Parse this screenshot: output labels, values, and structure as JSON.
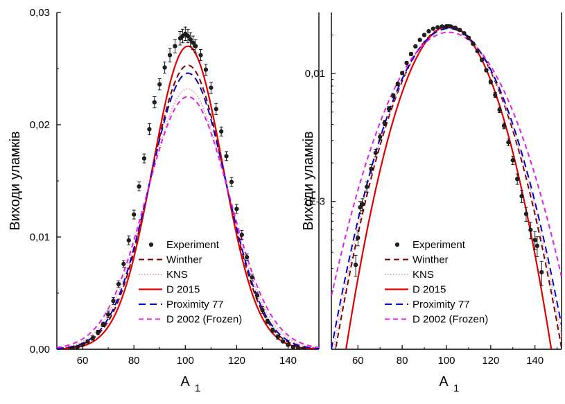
{
  "chart_data": [
    {
      "type": "line",
      "title": "",
      "xlabel_main": "A",
      "xlabel_sub": "1",
      "ylabel": "Виходи уламків",
      "xlim": [
        50,
        152
      ],
      "ylim": [
        0,
        0.03
      ],
      "yscale": "linear",
      "xticks": [
        60,
        80,
        100,
        120,
        140
      ],
      "xtick_labels": [
        "60",
        "80",
        "100",
        "120",
        "140"
      ],
      "yticks": [
        0,
        0.01,
        0.02,
        0.03
      ],
      "ytick_labels": [
        "0,00",
        "0,01",
        "0,02",
        "0,03"
      ],
      "grid": false,
      "legend_position": "lower-center",
      "experiment": {
        "name": "Experiment",
        "color": "#000000",
        "x": [
          56,
          58,
          60,
          62,
          64,
          66,
          68,
          70,
          72,
          74,
          76,
          78,
          80,
          82,
          84,
          86,
          88,
          90,
          92,
          94,
          96,
          98,
          99,
          100,
          101,
          102,
          103,
          104,
          106,
          108,
          110,
          112,
          114,
          116,
          118,
          120,
          122,
          124,
          126,
          128,
          130,
          132,
          134,
          136,
          138,
          140,
          142,
          144,
          146
        ],
        "y": [
          0.0001,
          0.0002,
          0.0004,
          0.0007,
          0.001,
          0.0015,
          0.0022,
          0.0031,
          0.0043,
          0.0058,
          0.0076,
          0.0097,
          0.012,
          0.0145,
          0.017,
          0.0196,
          0.022,
          0.0236,
          0.0251,
          0.0262,
          0.027,
          0.0277,
          0.0279,
          0.0281,
          0.0279,
          0.0276,
          0.0273,
          0.027,
          0.0262,
          0.0249,
          0.0233,
          0.0214,
          0.0194,
          0.0172,
          0.0149,
          0.0125,
          0.0102,
          0.0082,
          0.0064,
          0.0048,
          0.0035,
          0.0025,
          0.0017,
          0.0011,
          0.0007,
          0.0004,
          0.0002,
          0.0001,
          5e-05
        ],
        "err": [
          0.0001,
          0.0001,
          0.0001,
          0.0001,
          0.0002,
          0.0002,
          0.0002,
          0.0003,
          0.0003,
          0.0003,
          0.0003,
          0.0004,
          0.0004,
          0.0004,
          0.0004,
          0.0005,
          0.0005,
          0.0005,
          0.0005,
          0.0006,
          0.0006,
          0.0006,
          0.0006,
          0.0006,
          0.0006,
          0.0006,
          0.0006,
          0.0006,
          0.0005,
          0.0005,
          0.0005,
          0.0005,
          0.0004,
          0.0004,
          0.0004,
          0.0004,
          0.0004,
          0.0003,
          0.0003,
          0.0003,
          0.0003,
          0.0002,
          0.0002,
          0.0002,
          0.0001,
          0.0001,
          0.0001,
          0.0001,
          0.0001
        ]
      },
      "curves": [
        {
          "name": "Winther",
          "color": "#7a0000",
          "dash": "8,5",
          "mu": 101,
          "sigma": 14.4,
          "peak": 0.0253
        },
        {
          "name": "KNS",
          "color": "#f2a0a0",
          "dash": "1.5,2.5",
          "mu": 101,
          "sigma": 15.5,
          "peak": 0.0232
        },
        {
          "name": "D 2015",
          "color": "#e00000",
          "dash": "",
          "mu": 101,
          "sigma": 13.6,
          "peak": 0.027
        },
        {
          "name": "Proximity 77",
          "color": "#0000cc",
          "dash": "10,6",
          "mu": 101,
          "sigma": 14.8,
          "peak": 0.0246
        },
        {
          "name": "D 2002 (Frozen)",
          "color": "#e020e0",
          "dash": "7,5",
          "mu": 101,
          "sigma": 16.2,
          "peak": 0.0225
        }
      ]
    },
    {
      "type": "line",
      "title": "",
      "xlabel_main": "A",
      "xlabel_sub": "1",
      "ylabel": "Виходи уламків",
      "xlim": [
        48,
        152
      ],
      "ylim": [
        7e-05,
        0.03
      ],
      "yscale": "log",
      "xticks": [
        60,
        80,
        100,
        120,
        140
      ],
      "xtick_labels": [
        "60",
        "80",
        "100",
        "120",
        "140"
      ],
      "yticks": [
        0.001,
        0.01
      ],
      "ytick_labels": [
        "1E-3",
        "0,01"
      ],
      "grid": false,
      "legend_position": "lower-center",
      "experiment": {
        "name": "Experiment",
        "color": "#000000",
        "x": [
          59,
          60,
          61,
          62,
          64,
          66,
          68,
          70,
          72,
          74,
          76,
          78,
          80,
          82,
          84,
          86,
          88,
          90,
          92,
          94,
          96,
          98,
          100,
          101,
          102,
          104,
          106,
          108,
          110,
          112,
          114,
          116,
          118,
          120,
          122,
          124,
          126,
          128,
          130,
          132,
          134,
          136,
          138,
          140,
          141,
          143
        ],
        "y": [
          0.00032,
          0.00052,
          0.0009,
          0.00095,
          0.0013,
          0.0018,
          0.0024,
          0.0032,
          0.0041,
          0.0053,
          0.0067,
          0.0083,
          0.0101,
          0.0121,
          0.0142,
          0.0163,
          0.0183,
          0.02,
          0.0214,
          0.0224,
          0.023,
          0.0233,
          0.0234,
          0.0234,
          0.0233,
          0.0228,
          0.0219,
          0.0206,
          0.019,
          0.0171,
          0.015,
          0.0128,
          0.0106,
          0.0086,
          0.0068,
          0.0052,
          0.0039,
          0.0029,
          0.0021,
          0.0015,
          0.0011,
          0.0008,
          0.0006,
          0.0005,
          0.00045,
          0.00028
        ],
        "err": [
          6e-05,
          7e-05,
          0.0001,
          0.0001,
          0.00012,
          0.00014,
          0.00016,
          0.00018,
          0.0002,
          0.00022,
          0.00025,
          0.00028,
          0.0003,
          0.0003,
          0.0004,
          0.0004,
          0.0004,
          0.0005,
          0.0005,
          0.0005,
          0.0005,
          0.0005,
          0.0005,
          0.0005,
          0.0005,
          0.0005,
          0.0005,
          0.0005,
          0.0005,
          0.0004,
          0.0004,
          0.0004,
          0.0003,
          0.0003,
          0.0003,
          0.00025,
          0.0002,
          0.00018,
          0.00016,
          0.00014,
          0.00012,
          0.0001,
          9e-05,
          8e-05,
          8e-05,
          6e-05
        ]
      },
      "curves": [
        {
          "name": "Winther",
          "color": "#7a0000",
          "dash": "8,5",
          "mu": 101,
          "sigma": 15.0,
          "peak": 0.0232
        },
        {
          "name": "KNS",
          "color": "#f2a0a0",
          "dash": "1.5,2.5",
          "mu": 101,
          "sigma": 15.3,
          "peak": 0.0228
        },
        {
          "name": "D 2015",
          "color": "#e00000",
          "dash": "",
          "mu": 101,
          "sigma": 13.6,
          "peak": 0.0235
        },
        {
          "name": "Proximity 77",
          "color": "#0000cc",
          "dash": "10,6",
          "mu": 101,
          "sigma": 15.6,
          "peak": 0.0225
        },
        {
          "name": "D 2002 (Frozen)",
          "color": "#e020e0",
          "dash": "7,5",
          "mu": 101,
          "sigma": 17.2,
          "peak": 0.021
        }
      ]
    }
  ]
}
